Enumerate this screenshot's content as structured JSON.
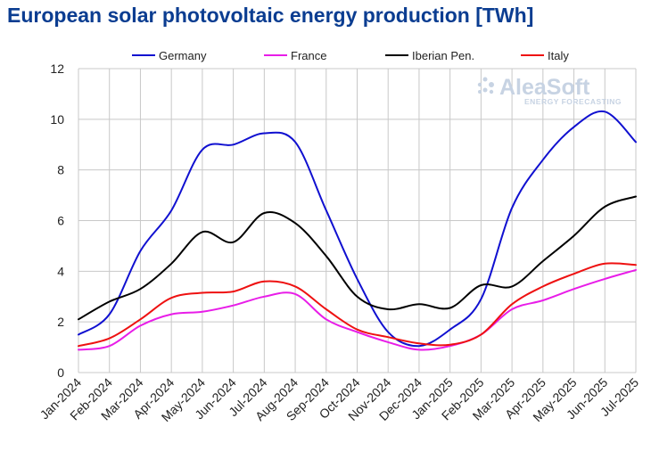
{
  "chart_data": {
    "type": "line",
    "title": "European solar photovoltaic energy production [TWh]",
    "xlabel": "",
    "ylabel": "",
    "categories": [
      "Jan-2024",
      "Feb-2024",
      "Mar-2024",
      "Apr-2024",
      "May-2024",
      "Jun-2024",
      "Jul-2024",
      "Aug-2024",
      "Sep-2024",
      "Oct-2024",
      "Nov-2024",
      "Dec-2024",
      "Jan-2025",
      "Feb-2025",
      "Mar-2025",
      "Apr-2025",
      "May-2025",
      "Jun-2025",
      "Jul-2025"
    ],
    "ylim": [
      0,
      12
    ],
    "yticks": [
      "0",
      "2",
      "4",
      "6",
      "8",
      "10",
      "12"
    ],
    "grid": true,
    "legend_position": "top",
    "series": [
      {
        "name": "Germany",
        "color": "#1010d0",
        "values": [
          1.5,
          2.3,
          4.8,
          6.4,
          8.8,
          9.0,
          9.45,
          9.1,
          6.4,
          3.7,
          1.6,
          1.05,
          1.7,
          2.9,
          6.5,
          8.4,
          9.7,
          10.3,
          9.1
        ]
      },
      {
        "name": "France",
        "color": "#e81de8",
        "values": [
          0.9,
          1.05,
          1.85,
          2.3,
          2.4,
          2.65,
          3.0,
          3.1,
          2.1,
          1.6,
          1.2,
          0.9,
          1.05,
          1.5,
          2.5,
          2.85,
          3.3,
          3.7,
          4.05
        ]
      },
      {
        "name": "Iberian Pen.",
        "color": "#000000",
        "values": [
          2.1,
          2.8,
          3.3,
          4.3,
          5.55,
          5.15,
          6.3,
          5.9,
          4.6,
          3.0,
          2.5,
          2.7,
          2.55,
          3.45,
          3.4,
          4.4,
          5.4,
          6.55,
          6.95
        ]
      },
      {
        "name": "Italy",
        "color": "#ee1111",
        "values": [
          1.05,
          1.35,
          2.1,
          2.95,
          3.15,
          3.2,
          3.6,
          3.4,
          2.5,
          1.7,
          1.4,
          1.15,
          1.1,
          1.5,
          2.7,
          3.4,
          3.9,
          4.3,
          4.25
        ]
      }
    ]
  },
  "watermark": {
    "brand": "AleaSoft",
    "tagline": "ENERGY FORECASTING",
    "color": "#c7d3e3"
  }
}
